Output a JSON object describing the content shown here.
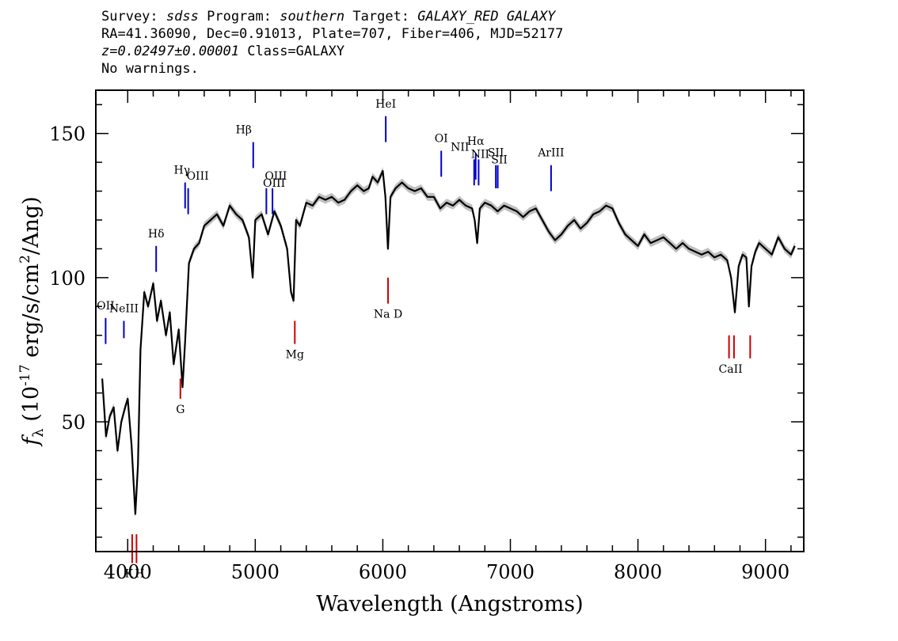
{
  "header": {
    "survey_label": "Survey:",
    "survey": "sdss",
    "program_label": "Program:",
    "program": "southern",
    "target_label": "Target:",
    "target": "GALAXY_RED GALAXY",
    "line2": "RA=41.36090, Dec=0.91013, Plate=707, Fiber=406, MJD=52177",
    "redshift": "z=0.02497±0.00001",
    "class_text": "Class=GALAXY",
    "warnings": "No warnings."
  },
  "chart_data": {
    "type": "line",
    "xlabel": "Wavelength (Angstroms)",
    "ylabel": "f_λ (10^-17 erg/s/cm^2/Ang)",
    "xlim": [
      3750,
      9300
    ],
    "ylim": [
      5,
      165
    ],
    "x_ticks": [
      4000,
      5000,
      6000,
      7000,
      8000,
      9000
    ],
    "y_ticks": [
      50,
      100,
      150
    ],
    "grid": false,
    "colors": {
      "flux": "#000000",
      "error_band": "#c0c0c0",
      "emission": "#0000cc",
      "absorption": "#cc0000"
    },
    "series": [
      {
        "x": [
          3800,
          3830,
          3860,
          3890,
          3920,
          3950,
          3980,
          4000,
          4030,
          4060,
          4080,
          4100,
          4130,
          4160,
          4200,
          4230,
          4260,
          4300,
          4330,
          4360,
          4400,
          4430,
          4450,
          4480,
          4520,
          4560,
          4600,
          4650,
          4700,
          4750,
          4800,
          4850,
          4900,
          4950,
          4980,
          5000,
          5050,
          5100,
          5150,
          5200,
          5250,
          5280,
          5300,
          5320,
          5350,
          5400,
          5450,
          5500,
          5550,
          5600,
          5650,
          5700,
          5750,
          5800,
          5850,
          5890,
          5920,
          5960,
          6000,
          6020,
          6040,
          6060,
          6100,
          6150,
          6200,
          6250,
          6300,
          6350,
          6400,
          6450,
          6500,
          6550,
          6600,
          6650,
          6700,
          6720,
          6740,
          6760,
          6800,
          6850,
          6900,
          6950,
          7000,
          7050,
          7100,
          7150,
          7200,
          7250,
          7300,
          7350,
          7400,
          7450,
          7500,
          7550,
          7600,
          7650,
          7700,
          7750,
          7800,
          7850,
          7900,
          7950,
          8000,
          8050,
          8100,
          8150,
          8200,
          8250,
          8300,
          8350,
          8400,
          8450,
          8500,
          8550,
          8600,
          8650,
          8700,
          8730,
          8760,
          8790,
          8820,
          8850,
          8870,
          8890,
          8920,
          8950,
          9000,
          9050,
          9100,
          9150,
          9200,
          9230
        ],
        "y": [
          65,
          45,
          52,
          55,
          40,
          50,
          55,
          58,
          42,
          18,
          35,
          75,
          95,
          90,
          98,
          85,
          92,
          80,
          88,
          70,
          82,
          62,
          78,
          105,
          110,
          112,
          118,
          120,
          122,
          118,
          125,
          122,
          120,
          114,
          100,
          120,
          122,
          115,
          123,
          118,
          110,
          95,
          92,
          120,
          118,
          126,
          125,
          128,
          127,
          128,
          126,
          127,
          130,
          132,
          130,
          131,
          135,
          133,
          137,
          128,
          110,
          128,
          131,
          133,
          131,
          130,
          131,
          128,
          128,
          124,
          126,
          125,
          127,
          125,
          124,
          120,
          112,
          124,
          126,
          125,
          123,
          125,
          124,
          123,
          121,
          123,
          124,
          120,
          116,
          113,
          115,
          118,
          120,
          117,
          119,
          122,
          123,
          125,
          124,
          119,
          115,
          113,
          111,
          115,
          112,
          113,
          114,
          112,
          110,
          112,
          110,
          109,
          108,
          109,
          107,
          108,
          106,
          100,
          88,
          104,
          108,
          107,
          90,
          104,
          109,
          112,
          110,
          108,
          114,
          110,
          108,
          111
        ]
      }
    ],
    "annotations": [
      {
        "label": "OII",
        "wave": 3827,
        "kind": "emission"
      },
      {
        "label": "NeIII",
        "wave": 3970,
        "kind": "emission"
      },
      {
        "label": "Hδ",
        "wave": 4223,
        "kind": "emission"
      },
      {
        "label": "Hγ",
        "wave": 4450,
        "kind": "emission"
      },
      {
        "label": "OIII",
        "wave": 4474,
        "kind": "emission"
      },
      {
        "label": "Hβ",
        "wave": 4984,
        "kind": "emission"
      },
      {
        "label": "OIII",
        "wave": 5087,
        "kind": "emission"
      },
      {
        "label": "OIII",
        "wave": 5135,
        "kind": "emission"
      },
      {
        "label": "HeI",
        "wave": 6023,
        "kind": "emission"
      },
      {
        "label": "OI",
        "wave": 6458,
        "kind": "emission"
      },
      {
        "label": "NII",
        "wave": 6716,
        "kind": "emission"
      },
      {
        "label": "Hα",
        "wave": 6728,
        "kind": "emission"
      },
      {
        "label": "NII",
        "wave": 6751,
        "kind": "emission"
      },
      {
        "label": "SII",
        "wave": 6886,
        "kind": "emission"
      },
      {
        "label": "SII",
        "wave": 6901,
        "kind": "emission"
      },
      {
        "label": "ArIII",
        "wave": 7319,
        "kind": "emission"
      },
      {
        "label": "K",
        "wave": 4035,
        "kind": "absorption"
      },
      {
        "label": "H",
        "wave": 4069,
        "kind": "absorption"
      },
      {
        "label": "G",
        "wave": 4413,
        "kind": "absorption"
      },
      {
        "label": "Mg",
        "wave": 5310,
        "kind": "absorption"
      },
      {
        "label": "Na D",
        "wave": 6041,
        "kind": "absorption"
      },
      {
        "label": "CaII",
        "wave": 8714,
        "kind": "absorption"
      },
      {
        "label": "CaII",
        "wave": 8753,
        "kind": "absorption"
      },
      {
        "label": "CaII",
        "wave": 8880,
        "kind": "absorption"
      }
    ]
  }
}
